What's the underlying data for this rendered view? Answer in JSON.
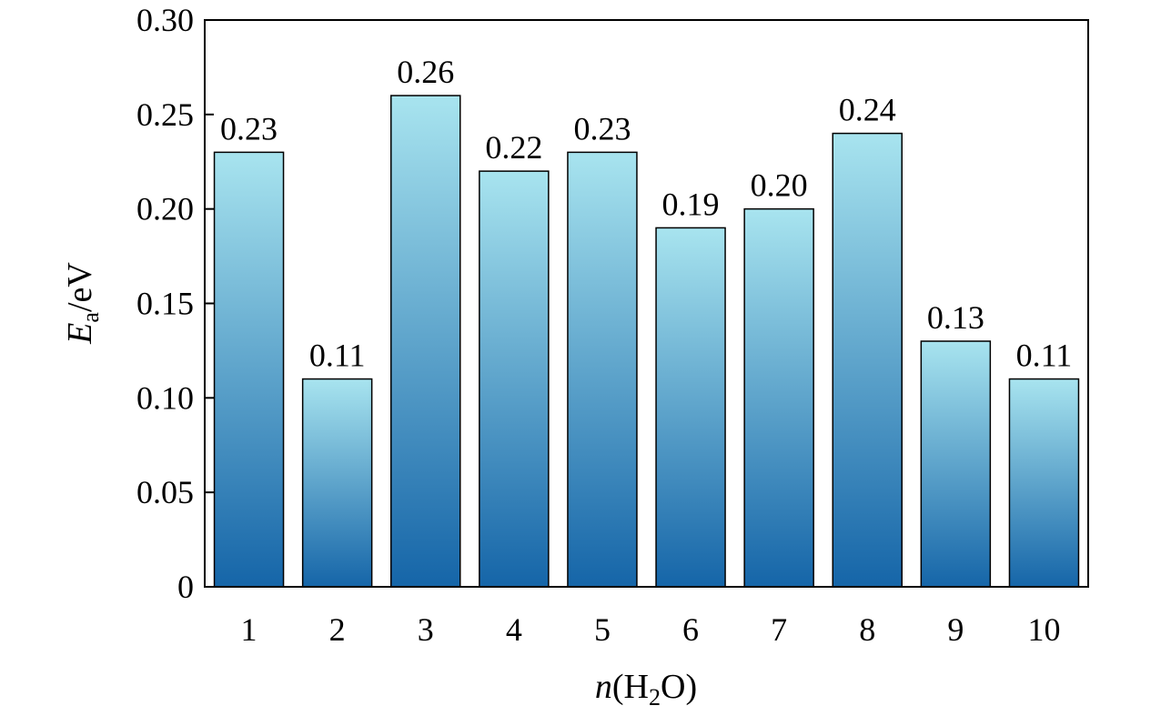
{
  "chart_data": {
    "type": "bar",
    "categories": [
      "1",
      "2",
      "3",
      "4",
      "5",
      "6",
      "7",
      "8",
      "9",
      "10"
    ],
    "values": [
      0.23,
      0.11,
      0.26,
      0.22,
      0.23,
      0.19,
      0.2,
      0.24,
      0.13,
      0.11
    ],
    "data_labels": [
      "0.23",
      "0.11",
      "0.26",
      "0.22",
      "0.23",
      "0.19",
      "0.20",
      "0.24",
      "0.13",
      "0.11"
    ],
    "y_ticks": [
      0,
      0.05,
      0.1,
      0.15,
      0.2,
      0.25,
      0.3
    ],
    "y_tick_labels": [
      "0",
      "0.05",
      "0.10",
      "0.15",
      "0.20",
      "0.25",
      "0.30"
    ],
    "ylim": [
      0,
      0.3
    ],
    "xlabel": {
      "var": "n",
      "open": "(H",
      "sub": "2",
      "close": "O)"
    },
    "ylabel": {
      "var": "E",
      "sub": "a",
      "unit": "/eV"
    },
    "grid": false,
    "colors": {
      "bar_top": "#a8e4ef",
      "bar_bottom": "#1565a8",
      "bar_edge": "#000000",
      "axis": "#000000"
    }
  }
}
